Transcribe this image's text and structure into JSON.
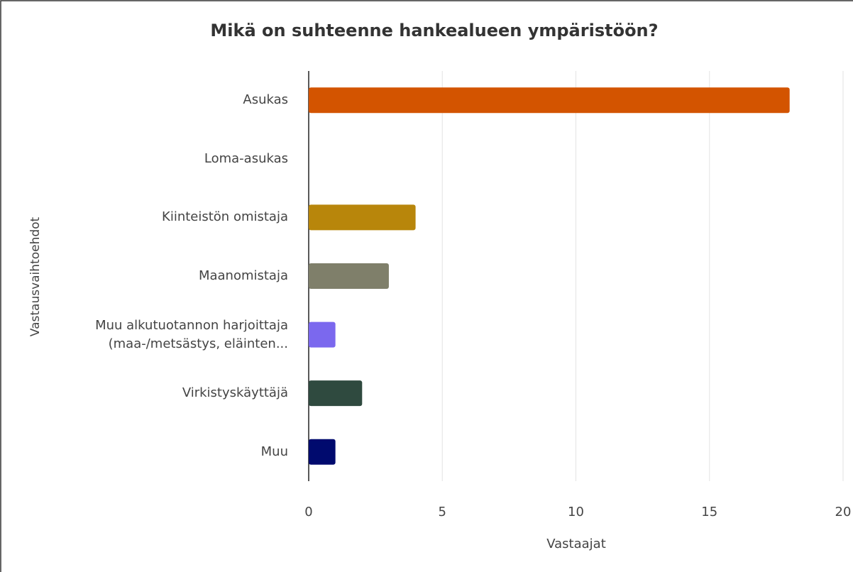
{
  "chart_data": {
    "type": "bar",
    "orientation": "horizontal",
    "title": "Mikä on suhteenne hankealueen ympäristöön?",
    "xlabel": "Vastaajat",
    "ylabel": "Vastausvaihtoehdot",
    "categories": [
      "Asukas",
      "Loma-asukas",
      "Kiinteistön omistaja",
      "Maanomistaja",
      "Muu alkutuotannon harjoittaja (maa-/metsästys, eläinten...",
      "Virkistyskäyttäjä",
      "Muu"
    ],
    "values": [
      18,
      0,
      4,
      3,
      1,
      2,
      1
    ],
    "colors": [
      "#d35400",
      "#8b5cf6",
      "#b8860b",
      "#7f7f6a",
      "#7b68ee",
      "#2f4a3f",
      "#000a6e"
    ],
    "xlim": [
      0,
      20
    ],
    "xticks": [
      0,
      5,
      10,
      15,
      20
    ],
    "grid": true
  }
}
